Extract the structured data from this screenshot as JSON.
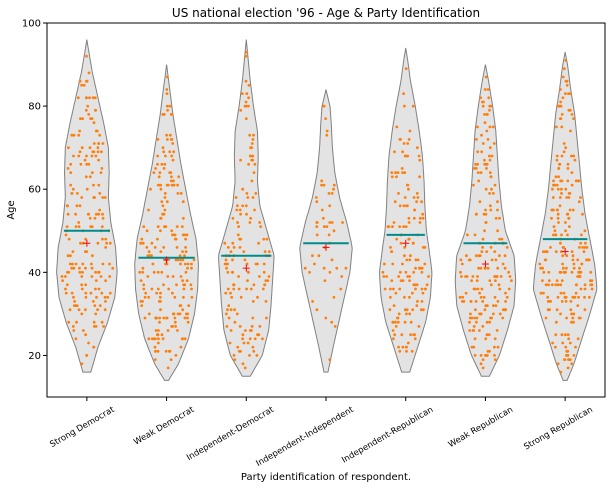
{
  "chart_data": {
    "type": "violin",
    "title": "US national election '96 - Age & Party Identification",
    "xlabel": "Party identification of respondent.",
    "ylabel": "Age",
    "ylim": [
      10,
      100
    ],
    "yticks": [
      20,
      40,
      60,
      80,
      100
    ],
    "grid": false,
    "colors": {
      "violin_fill": "#e3e3e3",
      "violin_edge": "#808080",
      "points": "#ff7f0e",
      "median": "#008b8b",
      "mean": "#ff0000"
    },
    "categories": [
      "Strong Democrat",
      "Weak Democrat",
      "Independent-Democrat",
      "Independent-Independent",
      "Independent-Republican",
      "Weak Republican",
      "Strong Republican"
    ],
    "violins": [
      {
        "min": 16,
        "max": 96,
        "median": 50,
        "mean": 47,
        "n": 200,
        "profile": [
          [
            16,
            0.1
          ],
          [
            22,
            0.28
          ],
          [
            28,
            0.52
          ],
          [
            34,
            0.7
          ],
          [
            40,
            0.76
          ],
          [
            46,
            0.72
          ],
          [
            52,
            0.6
          ],
          [
            58,
            0.54
          ],
          [
            64,
            0.56
          ],
          [
            70,
            0.54
          ],
          [
            76,
            0.42
          ],
          [
            82,
            0.28
          ],
          [
            88,
            0.14
          ],
          [
            93,
            0.05
          ],
          [
            96,
            0.0
          ]
        ]
      },
      {
        "min": 14,
        "max": 90,
        "median": 43.5,
        "mean": 43,
        "n": 220,
        "profile": [
          [
            14,
            0.05
          ],
          [
            18,
            0.3
          ],
          [
            24,
            0.55
          ],
          [
            30,
            0.7
          ],
          [
            36,
            0.78
          ],
          [
            42,
            0.8
          ],
          [
            48,
            0.74
          ],
          [
            54,
            0.6
          ],
          [
            60,
            0.48
          ],
          [
            66,
            0.36
          ],
          [
            72,
            0.26
          ],
          [
            78,
            0.16
          ],
          [
            84,
            0.08
          ],
          [
            90,
            0.0
          ]
        ]
      },
      {
        "min": 15,
        "max": 96,
        "median": 44,
        "mean": 41,
        "n": 150,
        "profile": [
          [
            15,
            0.1
          ],
          [
            20,
            0.4
          ],
          [
            26,
            0.56
          ],
          [
            32,
            0.62
          ],
          [
            38,
            0.66
          ],
          [
            44,
            0.7
          ],
          [
            50,
            0.52
          ],
          [
            56,
            0.34
          ],
          [
            62,
            0.28
          ],
          [
            68,
            0.3
          ],
          [
            74,
            0.28
          ],
          [
            80,
            0.18
          ],
          [
            86,
            0.1
          ],
          [
            92,
            0.04
          ],
          [
            96,
            0.0
          ]
        ]
      },
      {
        "min": 16,
        "max": 84,
        "median": 47,
        "mean": 46,
        "n": 50,
        "profile": [
          [
            16,
            0.05
          ],
          [
            22,
            0.18
          ],
          [
            28,
            0.32
          ],
          [
            34,
            0.46
          ],
          [
            40,
            0.6
          ],
          [
            46,
            0.66
          ],
          [
            52,
            0.52
          ],
          [
            58,
            0.34
          ],
          [
            64,
            0.22
          ],
          [
            70,
            0.16
          ],
          [
            76,
            0.13
          ],
          [
            80,
            0.1
          ],
          [
            84,
            0.0
          ]
        ]
      },
      {
        "min": 16,
        "max": 94,
        "median": 49,
        "mean": 47,
        "n": 160,
        "profile": [
          [
            16,
            0.1
          ],
          [
            22,
            0.3
          ],
          [
            28,
            0.5
          ],
          [
            34,
            0.62
          ],
          [
            40,
            0.66
          ],
          [
            46,
            0.58
          ],
          [
            50,
            0.52
          ],
          [
            56,
            0.48
          ],
          [
            62,
            0.46
          ],
          [
            68,
            0.42
          ],
          [
            74,
            0.34
          ],
          [
            80,
            0.24
          ],
          [
            86,
            0.12
          ],
          [
            91,
            0.05
          ],
          [
            94,
            0.0
          ]
        ]
      },
      {
        "min": 15,
        "max": 90,
        "median": 47,
        "mean": 42,
        "n": 200,
        "profile": [
          [
            15,
            0.1
          ],
          [
            20,
            0.35
          ],
          [
            26,
            0.55
          ],
          [
            32,
            0.72
          ],
          [
            38,
            0.76
          ],
          [
            44,
            0.72
          ],
          [
            50,
            0.5
          ],
          [
            56,
            0.4
          ],
          [
            62,
            0.34
          ],
          [
            68,
            0.3
          ],
          [
            74,
            0.26
          ],
          [
            80,
            0.18
          ],
          [
            86,
            0.08
          ],
          [
            90,
            0.0
          ]
        ]
      },
      {
        "min": 14,
        "max": 93,
        "median": 48,
        "mean": 45,
        "n": 240,
        "profile": [
          [
            14,
            0.05
          ],
          [
            18,
            0.22
          ],
          [
            24,
            0.42
          ],
          [
            30,
            0.62
          ],
          [
            36,
            0.8
          ],
          [
            42,
            0.74
          ],
          [
            48,
            0.62
          ],
          [
            54,
            0.5
          ],
          [
            60,
            0.42
          ],
          [
            66,
            0.36
          ],
          [
            72,
            0.3
          ],
          [
            78,
            0.24
          ],
          [
            84,
            0.14
          ],
          [
            90,
            0.06
          ],
          [
            93,
            0.0
          ]
        ]
      }
    ]
  }
}
